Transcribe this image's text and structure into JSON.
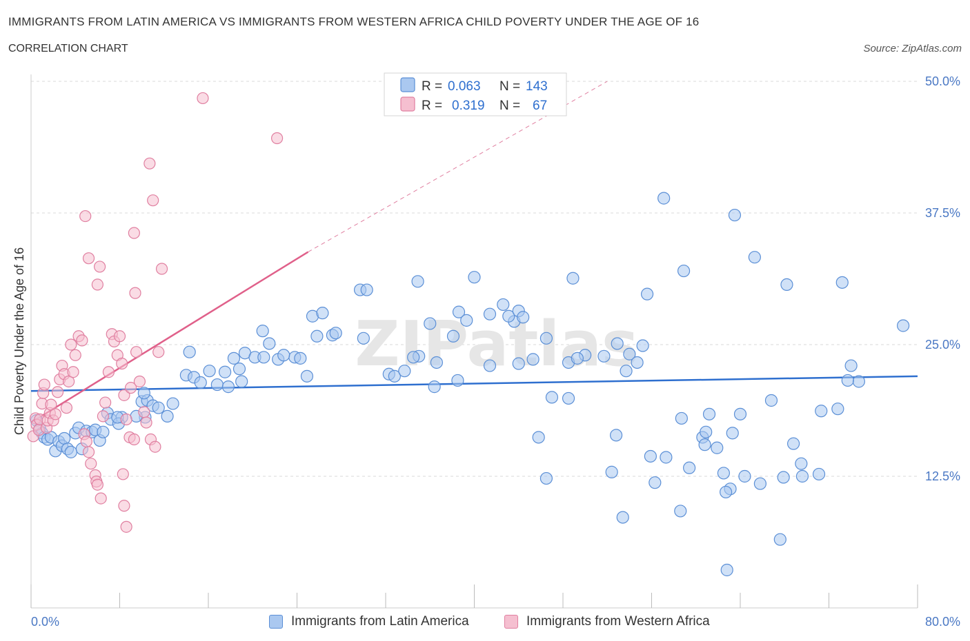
{
  "header": {
    "title": "IMMIGRANTS FROM LATIN AMERICA VS IMMIGRANTS FROM WESTERN AFRICA CHILD POVERTY UNDER THE AGE OF 16",
    "subtitle": "CORRELATION CHART",
    "source": "Source: ZipAtlas.com"
  },
  "watermark": "ZIPatlas",
  "colors": {
    "blue_fill": "#aac8f0",
    "blue_stroke": "#5b8fd6",
    "blue_line": "#2e6fcf",
    "pink_fill": "#f5bfd0",
    "pink_stroke": "#e07fa0",
    "pink_line": "#e0608a",
    "tick_text": "#4a78c4",
    "grid": "#d9d9d9"
  },
  "legend_box": {
    "rows": [
      {
        "r_label": "R =",
        "r_value": "0.063",
        "n_label": "N =",
        "n_value": "143",
        "color": "blue"
      },
      {
        "r_label": "R =",
        "r_value": "0.319",
        "n_label": "N =",
        "n_value": "67",
        "color": "pink"
      }
    ]
  },
  "bottom_legend": {
    "items": [
      {
        "label": "Immigrants from Latin America",
        "color": "blue"
      },
      {
        "label": "Immigrants from Western Africa",
        "color": "pink"
      }
    ]
  },
  "chart_data": {
    "type": "scatter",
    "title": "IMMIGRANTS FROM LATIN AMERICA VS IMMIGRANTS FROM WESTERN AFRICA CHILD POVERTY UNDER THE AGE OF 16",
    "subtitle": "CORRELATION CHART",
    "xlabel": "",
    "ylabel": "Child Poverty Under the Age of 16",
    "xlim": [
      0,
      80
    ],
    "ylim": [
      0,
      50
    ],
    "x_tick_labels": [
      {
        "value": 0,
        "label": "0.0%"
      },
      {
        "value": 80,
        "label": "80.0%"
      }
    ],
    "y_tick_labels": [
      {
        "value": 12.5,
        "label": "12.5%"
      },
      {
        "value": 25,
        "label": "25.0%"
      },
      {
        "value": 37.5,
        "label": "37.5%"
      },
      {
        "value": 50,
        "label": "50.0%"
      }
    ],
    "grid": true,
    "legend_position": "top-center",
    "series": [
      {
        "name": "Immigrants from Latin America",
        "color": "blue",
        "R": 0.063,
        "N": 143,
        "trend": {
          "x": [
            0,
            80
          ],
          "y": [
            20.6,
            22.0
          ]
        },
        "points": [
          [
            0.5,
            17.8
          ],
          [
            0.8,
            17.0
          ],
          [
            1.0,
            16.6
          ],
          [
            1.2,
            16.2
          ],
          [
            1.5,
            16.0
          ],
          [
            1.8,
            16.2
          ],
          [
            2.2,
            14.9
          ],
          [
            2.5,
            15.8
          ],
          [
            2.8,
            15.4
          ],
          [
            3.0,
            16.1
          ],
          [
            3.3,
            15.1
          ],
          [
            3.6,
            14.8
          ],
          [
            4.0,
            16.6
          ],
          [
            4.3,
            17.1
          ],
          [
            4.6,
            15.1
          ],
          [
            5.0,
            16.8
          ],
          [
            5.5,
            16.7
          ],
          [
            5.8,
            16.9
          ],
          [
            6.2,
            15.9
          ],
          [
            6.5,
            16.7
          ],
          [
            6.9,
            18.5
          ],
          [
            7.2,
            17.9
          ],
          [
            8.2,
            18.1
          ],
          [
            7.9,
            17.5
          ],
          [
            10.3,
            18.1
          ],
          [
            10.0,
            19.6
          ],
          [
            10.5,
            19.7
          ],
          [
            11.0,
            19.2
          ],
          [
            11.5,
            19.0
          ],
          [
            12.3,
            18.2
          ],
          [
            7.8,
            18.1
          ],
          [
            9.5,
            18.2
          ],
          [
            12.8,
            19.4
          ],
          [
            10.2,
            20.4
          ],
          [
            14.0,
            22.1
          ],
          [
            14.7,
            21.9
          ],
          [
            16.1,
            22.5
          ],
          [
            17.5,
            22.4
          ],
          [
            18.8,
            22.7
          ],
          [
            18.3,
            23.7
          ],
          [
            19.3,
            24.2
          ],
          [
            14.3,
            24.3
          ],
          [
            15.3,
            21.4
          ],
          [
            16.8,
            21.2
          ],
          [
            17.8,
            21.0
          ],
          [
            19.0,
            21.5
          ],
          [
            20.2,
            23.8
          ],
          [
            21.5,
            25.1
          ],
          [
            22.3,
            23.6
          ],
          [
            23.8,
            23.8
          ],
          [
            25.8,
            25.8
          ],
          [
            27.2,
            25.9
          ],
          [
            24.3,
            23.7
          ],
          [
            24.9,
            22.0
          ],
          [
            21.0,
            23.8
          ],
          [
            22.8,
            24.0
          ],
          [
            20.9,
            26.3
          ],
          [
            30.0,
            25.6
          ],
          [
            27.5,
            26.1
          ],
          [
            25.4,
            27.7
          ],
          [
            26.3,
            28.0
          ],
          [
            29.7,
            30.2
          ],
          [
            30.3,
            30.2
          ],
          [
            34.9,
            31.0
          ],
          [
            32.3,
            22.2
          ],
          [
            32.8,
            22.0
          ],
          [
            33.7,
            22.5
          ],
          [
            35.0,
            23.9
          ],
          [
            34.5,
            23.8
          ],
          [
            36.6,
            23.3
          ],
          [
            36.0,
            27.0
          ],
          [
            38.1,
            25.8
          ],
          [
            38.6,
            28.1
          ],
          [
            38.5,
            21.6
          ],
          [
            39.3,
            27.3
          ],
          [
            36.4,
            21.0
          ],
          [
            41.4,
            27.9
          ],
          [
            40.0,
            31.4
          ],
          [
            42.6,
            28.8
          ],
          [
            41.4,
            23.0
          ],
          [
            43.6,
            27.2
          ],
          [
            43.1,
            27.7
          ],
          [
            44.0,
            28.2
          ],
          [
            44.4,
            27.6
          ],
          [
            45.3,
            23.6
          ],
          [
            44.0,
            23.2
          ],
          [
            46.5,
            25.6
          ],
          [
            48.5,
            23.3
          ],
          [
            50.0,
            24.0
          ],
          [
            49.3,
            23.7
          ],
          [
            51.7,
            23.9
          ],
          [
            48.9,
            31.3
          ],
          [
            54.0,
            24.1
          ],
          [
            54.7,
            23.3
          ],
          [
            53.7,
            22.5
          ],
          [
            52.9,
            25.1
          ],
          [
            55.2,
            24.9
          ],
          [
            55.6,
            29.8
          ],
          [
            57.1,
            38.9
          ],
          [
            58.9,
            32.0
          ],
          [
            63.5,
            37.3
          ],
          [
            65.3,
            33.3
          ],
          [
            68.2,
            30.7
          ],
          [
            73.2,
            30.9
          ],
          [
            78.7,
            26.8
          ],
          [
            74.0,
            23.0
          ],
          [
            74.7,
            21.5
          ],
          [
            73.7,
            21.6
          ],
          [
            72.8,
            18.9
          ],
          [
            71.3,
            18.7
          ],
          [
            64.0,
            18.4
          ],
          [
            68.8,
            15.6
          ],
          [
            66.8,
            19.7
          ],
          [
            60.6,
            16.2
          ],
          [
            58.7,
            18.0
          ],
          [
            60.8,
            15.5
          ],
          [
            57.3,
            14.3
          ],
          [
            55.9,
            14.4
          ],
          [
            52.8,
            16.4
          ],
          [
            48.5,
            19.9
          ],
          [
            47.0,
            20.0
          ],
          [
            45.8,
            16.2
          ],
          [
            46.5,
            12.3
          ],
          [
            52.4,
            12.9
          ],
          [
            53.4,
            8.6
          ],
          [
            56.3,
            11.9
          ],
          [
            58.6,
            9.2
          ],
          [
            59.4,
            13.3
          ],
          [
            62.5,
            12.8
          ],
          [
            63.1,
            11.3
          ],
          [
            64.4,
            12.5
          ],
          [
            63.3,
            16.6
          ],
          [
            65.8,
            11.8
          ],
          [
            67.9,
            12.4
          ],
          [
            69.6,
            12.5
          ],
          [
            71.1,
            12.7
          ],
          [
            69.5,
            13.7
          ],
          [
            61.9,
            15.2
          ],
          [
            61.2,
            18.4
          ],
          [
            60.9,
            16.7
          ],
          [
            62.7,
            11.0
          ],
          [
            62.8,
            3.6
          ],
          [
            67.6,
            6.5
          ]
        ]
      },
      {
        "name": "Immigrants from Western Africa",
        "color": "pink",
        "R": 0.319,
        "N": 67,
        "trend_solid": {
          "x": [
            0,
            25
          ],
          "y": [
            17.6,
            33.8
          ]
        },
        "trend_dashed": {
          "x": [
            25,
            52
          ],
          "y": [
            33.8,
            50.0
          ]
        },
        "points": [
          [
            0.2,
            16.3
          ],
          [
            0.4,
            18.0
          ],
          [
            0.5,
            17.4
          ],
          [
            0.7,
            16.9
          ],
          [
            0.8,
            17.9
          ],
          [
            1.0,
            19.4
          ],
          [
            1.1,
            20.4
          ],
          [
            1.2,
            21.2
          ],
          [
            1.4,
            17.1
          ],
          [
            1.5,
            17.8
          ],
          [
            1.7,
            18.5
          ],
          [
            1.8,
            19.3
          ],
          [
            2.0,
            17.8
          ],
          [
            2.2,
            18.4
          ],
          [
            2.4,
            20.5
          ],
          [
            2.6,
            21.7
          ],
          [
            2.8,
            23.0
          ],
          [
            3.0,
            22.2
          ],
          [
            3.2,
            19.0
          ],
          [
            3.4,
            21.5
          ],
          [
            3.6,
            25.0
          ],
          [
            3.8,
            22.4
          ],
          [
            4.0,
            24.0
          ],
          [
            4.3,
            25.8
          ],
          [
            4.6,
            25.4
          ],
          [
            4.8,
            16.5
          ],
          [
            5.0,
            15.8
          ],
          [
            5.2,
            14.8
          ],
          [
            5.4,
            13.7
          ],
          [
            5.8,
            12.6
          ],
          [
            5.9,
            12.0
          ],
          [
            6.0,
            11.7
          ],
          [
            6.3,
            10.4
          ],
          [
            6.5,
            18.2
          ],
          [
            6.7,
            19.5
          ],
          [
            7.0,
            22.4
          ],
          [
            7.3,
            26.0
          ],
          [
            7.5,
            25.3
          ],
          [
            7.8,
            24.0
          ],
          [
            8.0,
            25.8
          ],
          [
            8.2,
            23.2
          ],
          [
            8.4,
            20.2
          ],
          [
            8.6,
            17.9
          ],
          [
            8.9,
            16.2
          ],
          [
            9.0,
            20.9
          ],
          [
            9.3,
            16.0
          ],
          [
            9.5,
            24.3
          ],
          [
            9.8,
            21.5
          ],
          [
            10.2,
            18.6
          ],
          [
            10.4,
            17.6
          ],
          [
            10.8,
            16.0
          ],
          [
            11.2,
            15.3
          ],
          [
            11.5,
            24.3
          ],
          [
            11.8,
            32.2
          ],
          [
            6.0,
            30.7
          ],
          [
            6.2,
            32.4
          ],
          [
            5.2,
            33.2
          ],
          [
            4.9,
            37.2
          ],
          [
            9.3,
            35.6
          ],
          [
            9.4,
            29.9
          ],
          [
            10.7,
            42.2
          ],
          [
            11.0,
            38.7
          ],
          [
            15.5,
            48.4
          ],
          [
            22.2,
            44.6
          ],
          [
            8.3,
            12.7
          ],
          [
            8.4,
            9.7
          ],
          [
            8.6,
            7.7
          ]
        ]
      }
    ]
  }
}
